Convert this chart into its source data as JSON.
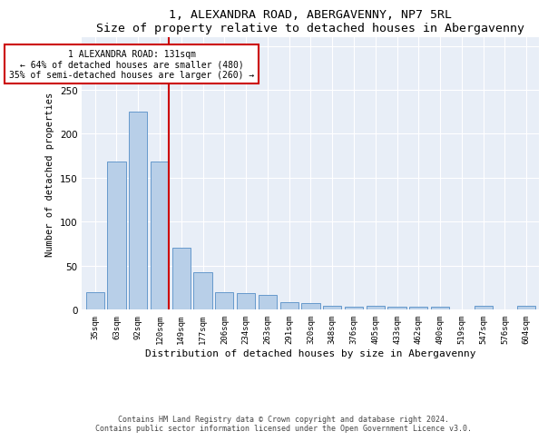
{
  "title": "1, ALEXANDRA ROAD, ABERGAVENNY, NP7 5RL",
  "subtitle": "Size of property relative to detached houses in Abergavenny",
  "xlabel": "Distribution of detached houses by size in Abergavenny",
  "ylabel": "Number of detached properties",
  "categories": [
    "35sqm",
    "63sqm",
    "92sqm",
    "120sqm",
    "149sqm",
    "177sqm",
    "206sqm",
    "234sqm",
    "263sqm",
    "291sqm",
    "320sqm",
    "348sqm",
    "376sqm",
    "405sqm",
    "433sqm",
    "462sqm",
    "490sqm",
    "519sqm",
    "547sqm",
    "576sqm",
    "604sqm"
  ],
  "values": [
    20,
    168,
    225,
    168,
    70,
    42,
    20,
    19,
    17,
    8,
    7,
    4,
    3,
    4,
    3,
    3,
    3,
    0,
    4,
    0,
    4
  ],
  "bar_color": "#b8cfe8",
  "bar_edge_color": "#6699cc",
  "vline_color": "#cc0000",
  "annotation_line1": "1 ALEXANDRA ROAD: 131sqm",
  "annotation_line2": "← 64% of detached houses are smaller (480)",
  "annotation_line3": "35% of semi-detached houses are larger (260) →",
  "annotation_box_facecolor": "#ffffff",
  "annotation_box_edgecolor": "#cc0000",
  "footnote_line1": "Contains HM Land Registry data © Crown copyright and database right 2024.",
  "footnote_line2": "Contains public sector information licensed under the Open Government Licence v3.0.",
  "ylim_max": 310,
  "plot_bg_color": "#e8eef7",
  "fig_width": 6.0,
  "fig_height": 5.0,
  "dpi": 100
}
